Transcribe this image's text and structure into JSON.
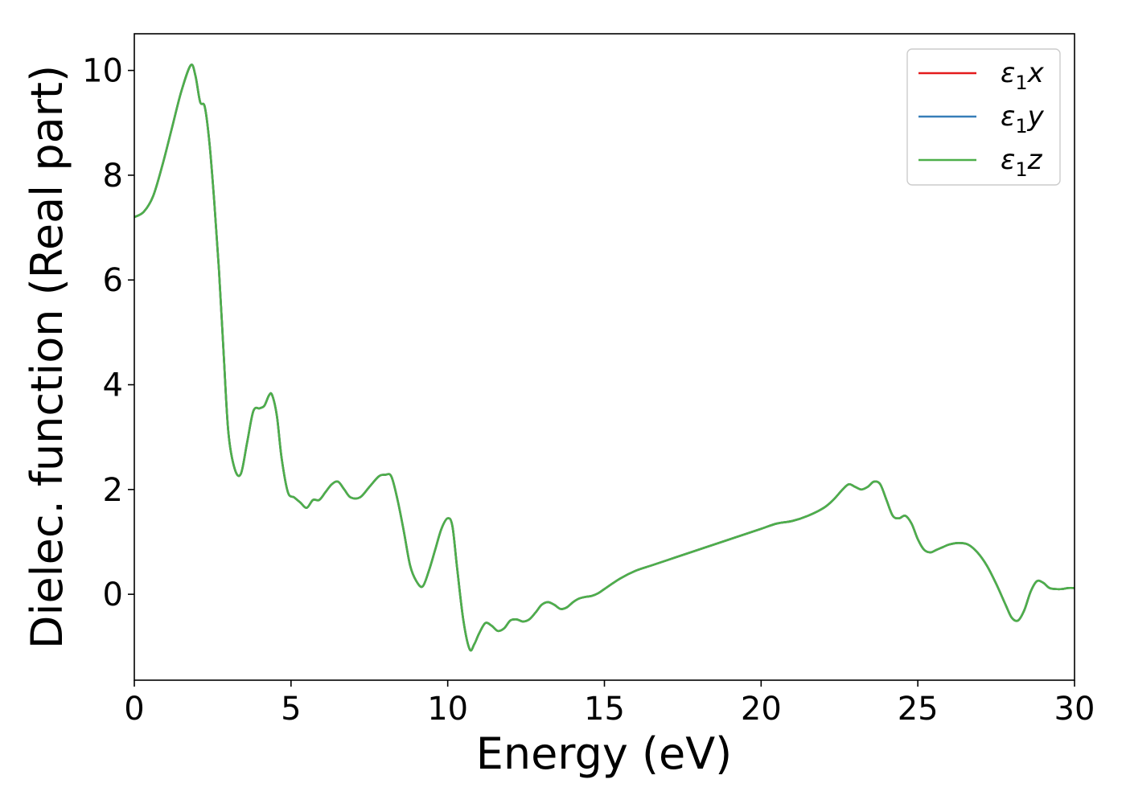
{
  "chart_data": {
    "type": "line",
    "xlabel": "Energy (eV)",
    "ylabel": "Dielec. function (Real part)",
    "xlim": [
      0,
      30
    ],
    "ylim": [
      -1.64,
      10.7
    ],
    "xticks": [
      0,
      5,
      10,
      15,
      20,
      25,
      30
    ],
    "yticks": [
      0,
      2,
      4,
      6,
      8,
      10
    ],
    "grid": false,
    "legend_position": "top-right",
    "series": [
      {
        "name": "ε₁x",
        "legend_base": "ε",
        "legend_sub": "1",
        "legend_var": "x",
        "color": "#e41a1c"
      },
      {
        "name": "ε₁y",
        "legend_base": "ε",
        "legend_sub": "1",
        "legend_var": "y",
        "color": "#377eb8"
      },
      {
        "name": "ε₁z",
        "legend_base": "ε",
        "legend_sub": "1",
        "legend_var": "z",
        "color": "#4daf4a"
      }
    ],
    "x": [
      0,
      0.3,
      0.6,
      0.9,
      1.2,
      1.5,
      1.8,
      1.95,
      2.1,
      2.25,
      2.4,
      2.55,
      2.7,
      2.85,
      3.0,
      3.2,
      3.4,
      3.6,
      3.8,
      4.0,
      4.15,
      4.3,
      4.4,
      4.55,
      4.7,
      4.9,
      5.1,
      5.3,
      5.5,
      5.7,
      5.9,
      6.1,
      6.3,
      6.5,
      6.7,
      6.9,
      7.2,
      7.5,
      7.8,
      8.0,
      8.2,
      8.4,
      8.6,
      8.8,
      9.0,
      9.2,
      9.4,
      9.6,
      9.8,
      10.0,
      10.15,
      10.3,
      10.5,
      10.7,
      10.85,
      11.0,
      11.2,
      11.4,
      11.6,
      11.8,
      12.0,
      12.2,
      12.4,
      12.6,
      12.8,
      13.0,
      13.2,
      13.4,
      13.6,
      13.8,
      14.0,
      14.2,
      14.4,
      14.6,
      14.8,
      15.0,
      15.5,
      16.0,
      16.5,
      17.0,
      17.5,
      18.0,
      18.5,
      19.0,
      19.5,
      20.0,
      20.5,
      21.0,
      21.5,
      22.0,
      22.3,
      22.6,
      22.8,
      23.0,
      23.2,
      23.4,
      23.6,
      23.8,
      24.0,
      24.2,
      24.4,
      24.6,
      24.8,
      25.0,
      25.2,
      25.4,
      25.6,
      25.8,
      26.0,
      26.3,
      26.6,
      26.9,
      27.2,
      27.5,
      27.8,
      28.0,
      28.2,
      28.4,
      28.6,
      28.8,
      29.0,
      29.2,
      29.4,
      29.6,
      29.8,
      30.0
    ],
    "y": [
      7.2,
      7.3,
      7.6,
      8.2,
      8.9,
      9.6,
      10.1,
      9.9,
      9.4,
      9.3,
      8.6,
      7.5,
      6.2,
      4.6,
      3.1,
      2.4,
      2.3,
      2.9,
      3.5,
      3.55,
      3.6,
      3.8,
      3.8,
      3.4,
      2.6,
      1.95,
      1.85,
      1.75,
      1.65,
      1.8,
      1.8,
      1.95,
      2.1,
      2.15,
      2.0,
      1.85,
      1.85,
      2.05,
      2.25,
      2.28,
      2.25,
      1.8,
      1.2,
      0.55,
      0.25,
      0.15,
      0.45,
      0.85,
      1.25,
      1.45,
      1.3,
      0.5,
      -0.5,
      -1.05,
      -0.95,
      -0.75,
      -0.55,
      -0.6,
      -0.7,
      -0.65,
      -0.5,
      -0.48,
      -0.52,
      -0.48,
      -0.35,
      -0.2,
      -0.15,
      -0.2,
      -0.28,
      -0.25,
      -0.15,
      -0.08,
      -0.05,
      -0.03,
      0.02,
      0.1,
      0.3,
      0.45,
      0.55,
      0.65,
      0.75,
      0.85,
      0.95,
      1.05,
      1.15,
      1.25,
      1.35,
      1.4,
      1.5,
      1.65,
      1.8,
      2.0,
      2.1,
      2.05,
      2.0,
      2.05,
      2.15,
      2.1,
      1.8,
      1.5,
      1.45,
      1.5,
      1.35,
      1.05,
      0.85,
      0.8,
      0.85,
      0.9,
      0.95,
      0.98,
      0.95,
      0.8,
      0.55,
      0.2,
      -0.2,
      -0.45,
      -0.5,
      -0.3,
      0.05,
      0.25,
      0.22,
      0.12,
      0.1,
      0.1,
      0.12,
      0.12
    ]
  }
}
